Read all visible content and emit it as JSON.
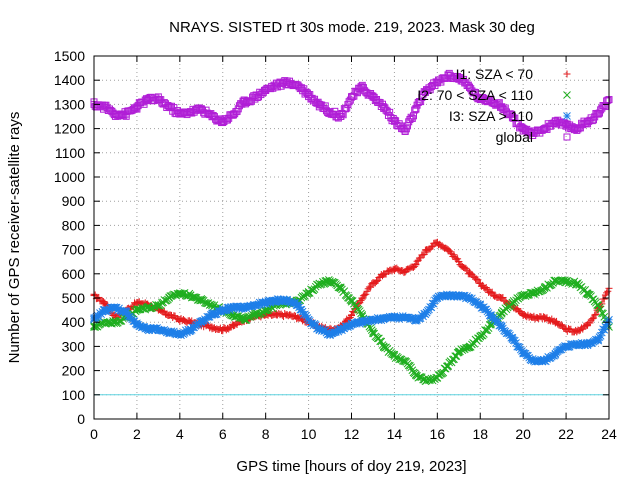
{
  "chart_data": {
    "type": "scatter",
    "title": "NRAYS. SISTED rt 30s mode. 219, 2023. Mask 30 deg",
    "xlabel": "GPS time [hours of doy 219, 2023]",
    "ylabel": "Number of GPS receiver-satellite rays",
    "xlim": [
      0,
      24
    ],
    "ylim": [
      0,
      1500
    ],
    "xticks": [
      0,
      2,
      4,
      6,
      8,
      10,
      12,
      14,
      16,
      18,
      20,
      22,
      24
    ],
    "yticks": [
      0,
      100,
      200,
      300,
      400,
      500,
      600,
      700,
      800,
      900,
      1000,
      1100,
      1200,
      1300,
      1400,
      1500
    ],
    "grid": true,
    "legend_position": "top-right",
    "reference_line": {
      "y": 100,
      "color": "#5fd3e0"
    },
    "series": [
      {
        "name": "I1: SZA < 70",
        "marker": "plus",
        "color": "#e41a1c",
        "x": [
          0,
          0.5,
          1,
          1.5,
          2,
          2.5,
          3,
          3.5,
          4,
          4.5,
          5,
          5.5,
          6,
          6.5,
          7,
          7.5,
          8,
          8.5,
          9,
          9.5,
          10,
          10.5,
          11,
          11.5,
          12,
          12.5,
          13,
          13.5,
          14,
          14.5,
          15,
          15.5,
          16,
          16.5,
          17,
          17.5,
          18,
          18.5,
          19,
          19.5,
          20,
          20.5,
          21,
          21.5,
          22,
          22.5,
          23,
          23.5,
          24
        ],
        "y": [
          510,
          480,
          420,
          450,
          480,
          475,
          450,
          430,
          410,
          400,
          390,
          380,
          370,
          385,
          410,
          425,
          430,
          430,
          430,
          420,
          400,
          380,
          370,
          380,
          430,
          500,
          560,
          600,
          620,
          610,
          640,
          700,
          730,
          700,
          650,
          600,
          560,
          520,
          500,
          470,
          430,
          420,
          420,
          400,
          370,
          360,
          390,
          450,
          540
        ]
      },
      {
        "name": "I2: 70 < SZA < 110",
        "marker": "cross",
        "color": "#1fae1f",
        "x": [
          0,
          0.5,
          1,
          1.5,
          2,
          2.5,
          3,
          3.5,
          4,
          4.5,
          5,
          5.5,
          6,
          6.5,
          7,
          7.5,
          8,
          8.5,
          9,
          9.5,
          10,
          10.5,
          11,
          11.5,
          12,
          12.5,
          13,
          13.5,
          14,
          14.5,
          15,
          15.5,
          16,
          16.5,
          17,
          17.5,
          18,
          18.5,
          19,
          19.5,
          20,
          20.5,
          21,
          21.5,
          22,
          22.5,
          23,
          23.5,
          24
        ],
        "y": [
          380,
          400,
          400,
          420,
          450,
          460,
          470,
          500,
          520,
          510,
          490,
          470,
          450,
          430,
          410,
          430,
          450,
          470,
          480,
          490,
          520,
          560,
          570,
          540,
          490,
          430,
          360,
          300,
          260,
          240,
          180,
          160,
          170,
          220,
          280,
          300,
          340,
          390,
          440,
          480,
          510,
          520,
          540,
          570,
          570,
          560,
          520,
          470,
          380
        ]
      },
      {
        "name": "I3: SZA > 110",
        "marker": "star",
        "color": "#1e7fe8",
        "x": [
          0,
          0.5,
          1,
          1.5,
          2,
          2.5,
          3,
          3.5,
          4,
          4.5,
          5,
          5.5,
          6,
          6.5,
          7,
          7.5,
          8,
          8.5,
          9,
          9.5,
          10,
          10.5,
          11,
          11.5,
          12,
          12.5,
          13,
          13.5,
          14,
          14.5,
          15,
          15.5,
          16,
          16.5,
          17,
          17.5,
          18,
          18.5,
          19,
          19.5,
          20,
          20.5,
          21,
          21.5,
          22,
          22.5,
          23,
          23.5,
          24
        ],
        "y": [
          410,
          450,
          460,
          440,
          390,
          370,
          370,
          360,
          350,
          370,
          400,
          430,
          450,
          460,
          460,
          470,
          480,
          490,
          490,
          470,
          410,
          370,
          350,
          370,
          390,
          400,
          410,
          415,
          420,
          420,
          410,
          440,
          500,
          510,
          510,
          500,
          470,
          430,
          380,
          330,
          270,
          240,
          240,
          270,
          300,
          310,
          310,
          330,
          410
        ]
      },
      {
        "name": "global",
        "marker": "square",
        "color": "#b01ed6",
        "x": [
          0,
          0.5,
          1,
          1.5,
          2,
          2.5,
          3,
          3.5,
          4,
          4.5,
          5,
          5.5,
          6,
          6.5,
          7,
          7.5,
          8,
          8.5,
          9,
          9.5,
          10,
          10.5,
          11,
          11.5,
          12,
          12.5,
          13,
          13.5,
          14,
          14.5,
          15,
          15.5,
          16,
          16.5,
          17,
          17.5,
          18,
          18.5,
          19,
          19.5,
          20,
          20.5,
          21,
          21.5,
          22,
          22.5,
          23,
          23.5,
          24
        ],
        "y": [
          1300,
          1290,
          1260,
          1260,
          1290,
          1320,
          1320,
          1290,
          1260,
          1270,
          1280,
          1250,
          1230,
          1260,
          1310,
          1330,
          1360,
          1380,
          1390,
          1380,
          1340,
          1300,
          1270,
          1250,
          1330,
          1370,
          1330,
          1290,
          1230,
          1190,
          1280,
          1360,
          1390,
          1420,
          1410,
          1370,
          1320,
          1320,
          1290,
          1250,
          1190,
          1180,
          1200,
          1230,
          1210,
          1200,
          1230,
          1260,
          1320
        ]
      }
    ]
  }
}
